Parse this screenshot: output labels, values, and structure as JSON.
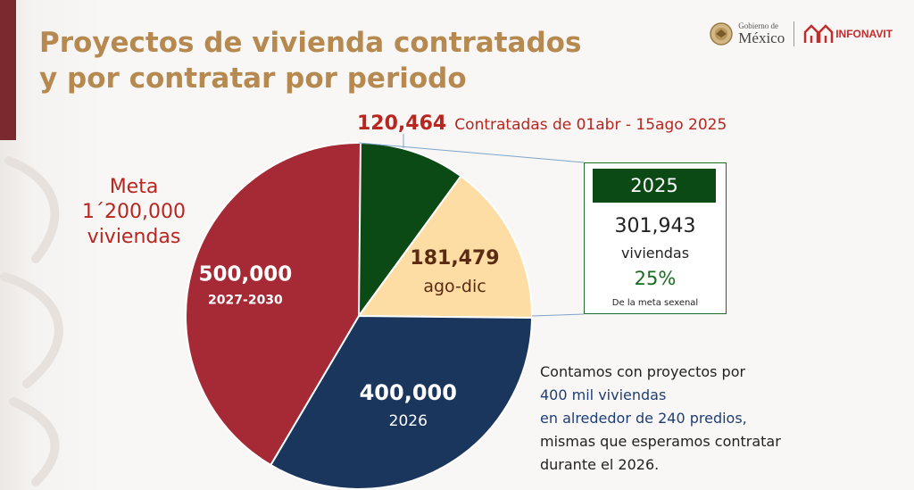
{
  "header": {
    "title_line1": "Proyectos de vivienda contratados",
    "title_line2": "y por contratar por periodo"
  },
  "logos": {
    "gobierno_small": "Gobierno de",
    "gobierno_big": "México",
    "infonavit": "INFONAVIT",
    "gobierno_icon": "eagle-seal-icon",
    "infonavit_icon": "houses-icon"
  },
  "meta": {
    "line1": "Meta",
    "line2": "1´200,000",
    "line3": "viviendas"
  },
  "top_annotation": {
    "number": "120,464",
    "text": "Contratadas de 01abr - 15ago 2025"
  },
  "callout": {
    "header": "2025",
    "number": "301,943",
    "unit": "viviendas",
    "percent": "25%",
    "note": "De la meta sexenal"
  },
  "note": {
    "line1": "Contamos con proyectos por",
    "line2": "400 mil viviendas",
    "line3": "en alrededor de 240 predios,",
    "line4": "mismas que esperamos contratar",
    "line5": "durante el 2026."
  },
  "chart_data": {
    "type": "pie",
    "title": "",
    "total": 1200000,
    "slices": [
      {
        "value": 120464,
        "color": "#0b4a14"
      },
      {
        "value": 181479,
        "label": "181,479",
        "sublabel": "ago-dic",
        "color": "#fddda4"
      },
      {
        "value": 400000,
        "label": "400,000",
        "sublabel": "2026",
        "color": "#1b365d"
      },
      {
        "value": 500000,
        "label": "500,000",
        "sublabel": "2027-2030",
        "color": "#a52a35"
      }
    ]
  },
  "colors": {
    "title": "#b5894f",
    "accent_red": "#b8261f",
    "dark_green": "#0b4a14",
    "navy": "#1b365d",
    "callout_border": "#1e6b2a"
  }
}
